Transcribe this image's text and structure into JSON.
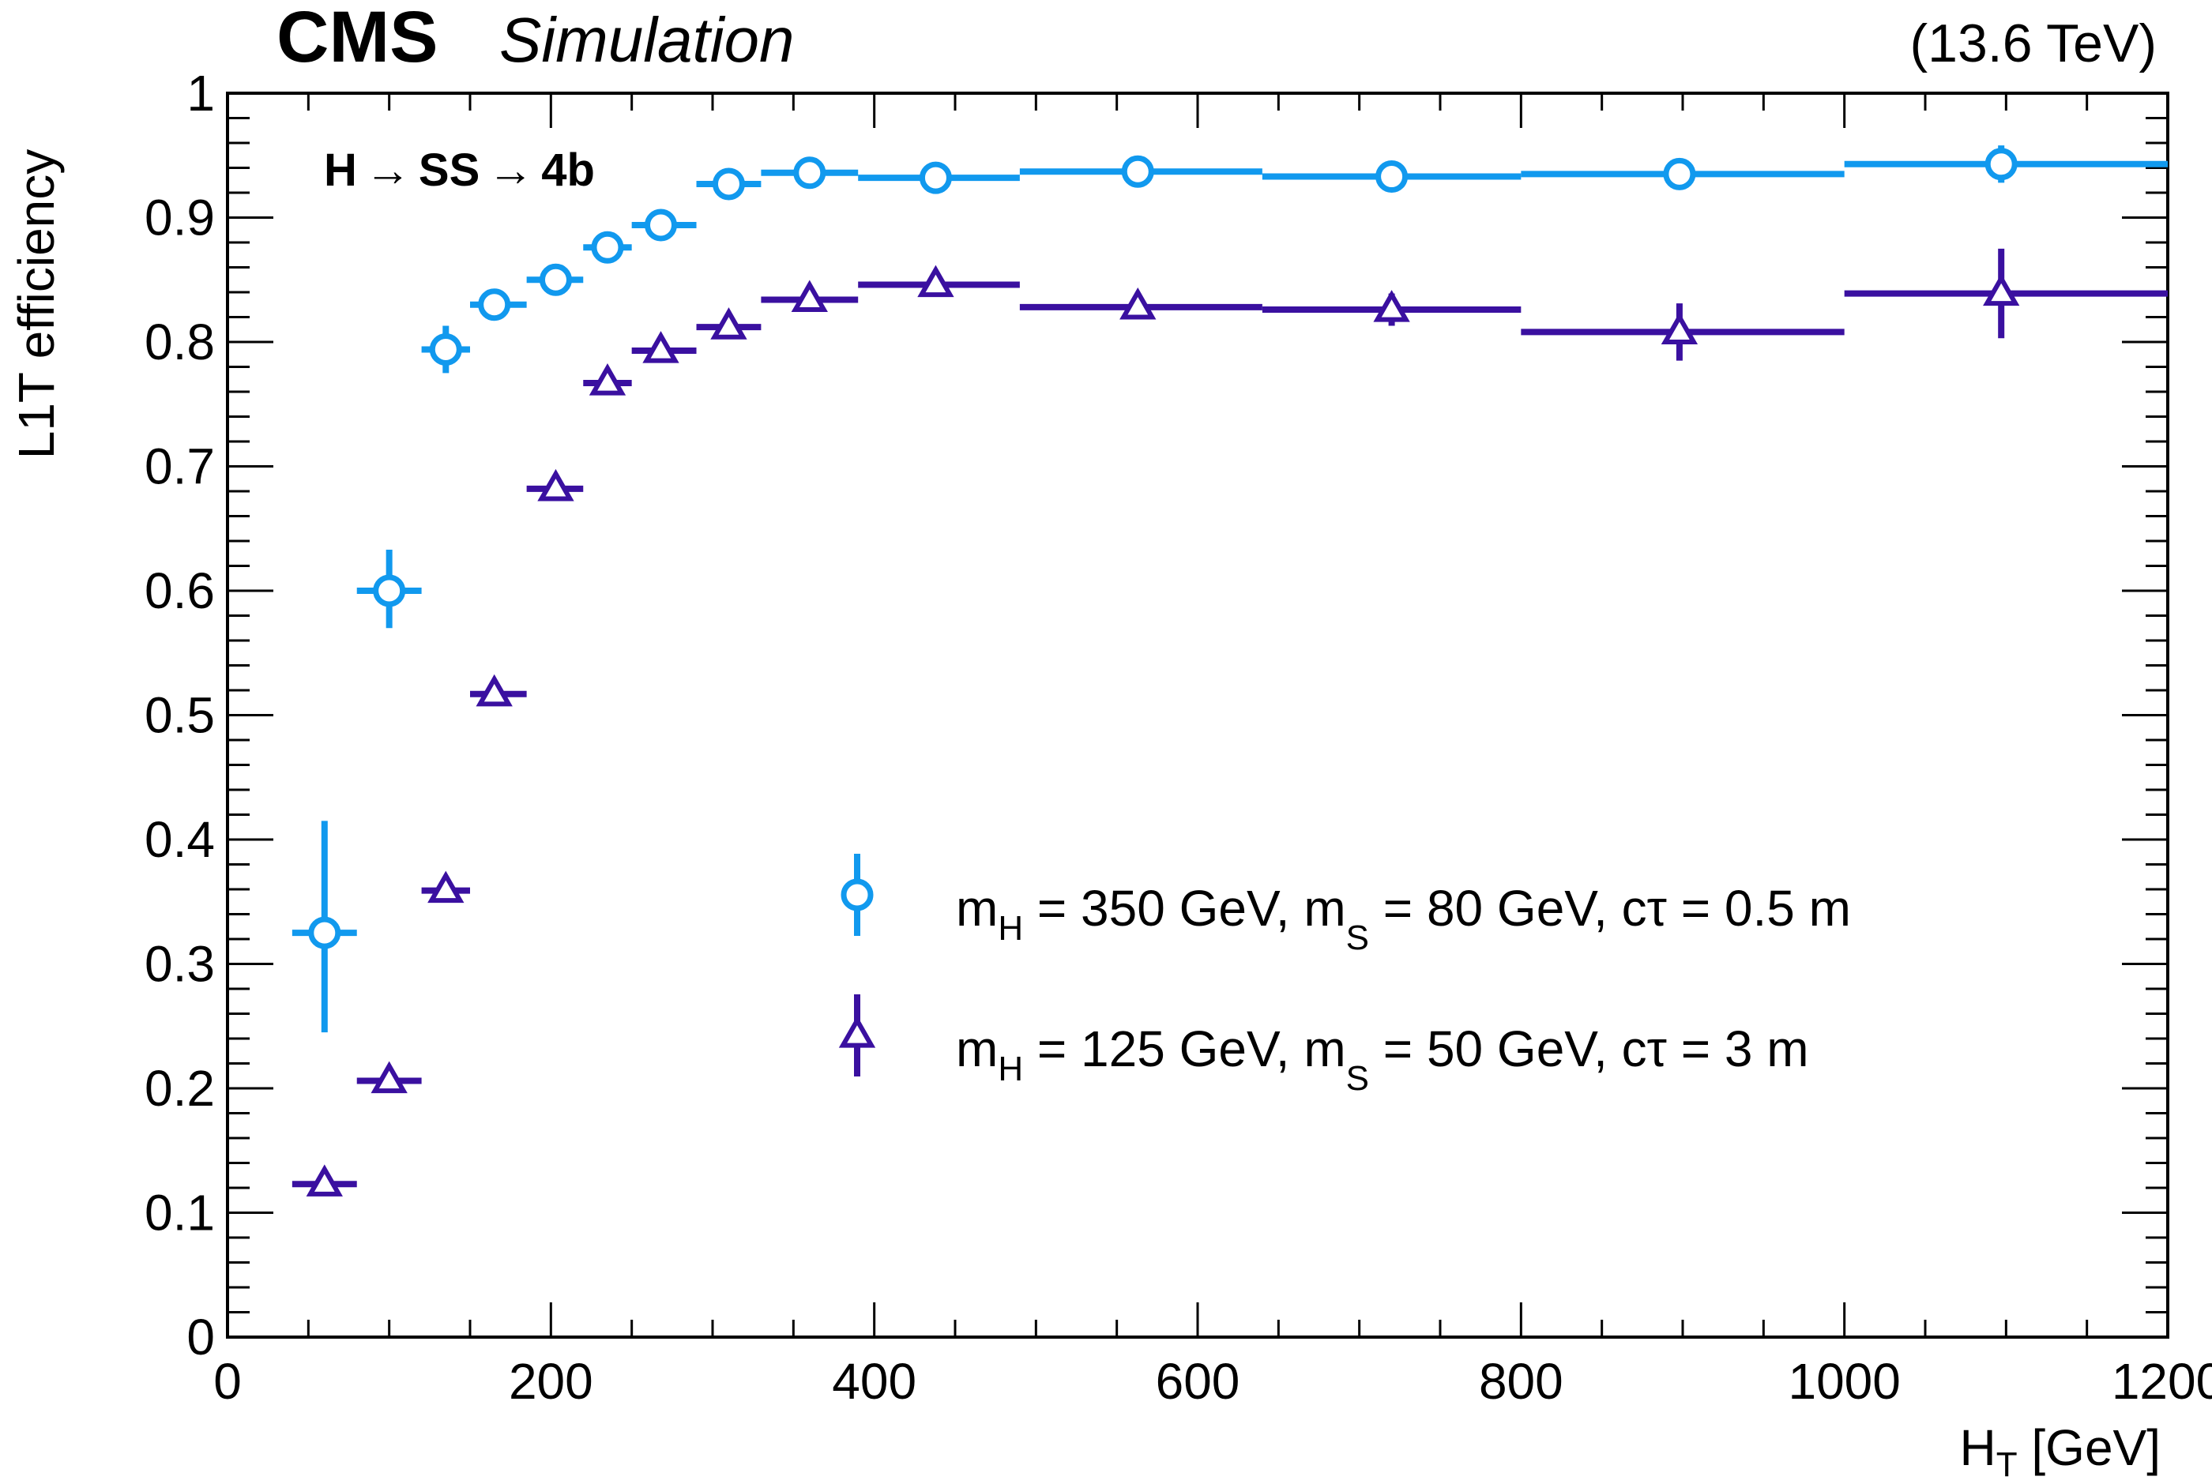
{
  "header": {
    "experiment": "CMS",
    "status": "Simulation",
    "energy": "(13.6 TeV)"
  },
  "process_label": {
    "a": "H",
    "arrow1": "→",
    "b": "SS",
    "arrow2": "→",
    "c": "4b"
  },
  "legend": [
    {
      "marker": "open-circle",
      "color": "#1199ee",
      "parts": {
        "m1": "m",
        "sub1": "H",
        "t1": " = 350 GeV, ",
        "m2": "m",
        "sub2": "S",
        "t2": " = 80 GeV, ",
        "ctau": "cτ",
        "t3": " = 0.5 m"
      }
    },
    {
      "marker": "open-triangle",
      "color": "#3a10a0",
      "parts": {
        "m1": "m",
        "sub1": "H",
        "t1": " = 125 GeV, ",
        "m2": "m",
        "sub2": "S",
        "t2": " = 50 GeV, ",
        "ctau": "cτ",
        "t3": " = 3 m"
      }
    }
  ],
  "chart_data": {
    "type": "scatter",
    "title": "",
    "xlabel": {
      "main": "H",
      "sub": "T",
      "unit": " [GeV]"
    },
    "ylabel": "L1T efficiency",
    "xlim": [
      0,
      1200
    ],
    "ylim": [
      0,
      1
    ],
    "x_ticks": [
      0,
      200,
      400,
      600,
      800,
      1000,
      1200
    ],
    "x_tick_labels": [
      "0",
      "200",
      "400",
      "600",
      "800",
      "1000",
      "1200"
    ],
    "y_ticks": [
      0,
      0.1,
      0.2,
      0.3,
      0.4,
      0.5,
      0.6,
      0.7,
      0.8,
      0.9,
      1
    ],
    "y_tick_labels": [
      "0",
      "0.1",
      "0.2",
      "0.3",
      "0.4",
      "0.5",
      "0.6",
      "0.7",
      "0.8",
      "0.9",
      "1"
    ],
    "grid": false,
    "legend_position": "center-right",
    "series": [
      {
        "name": "mH = 350 GeV, mS = 80 GeV, cτ = 0.5 m",
        "color": "#1199ee",
        "marker": "open-circle",
        "points": [
          {
            "x": 60,
            "xlo": 40,
            "xhi": 80,
            "y": 0.325,
            "ylo": 0.245,
            "yhi": 0.415
          },
          {
            "x": 100,
            "xlo": 80,
            "xhi": 120,
            "y": 0.6,
            "ylo": 0.57,
            "yhi": 0.633
          },
          {
            "x": 135,
            "xlo": 120,
            "xhi": 150,
            "y": 0.794,
            "ylo": 0.775,
            "yhi": 0.813
          },
          {
            "x": 165,
            "xlo": 150,
            "xhi": 185,
            "y": 0.83,
            "ylo": 0.82,
            "yhi": 0.84
          },
          {
            "x": 203,
            "xlo": 185,
            "xhi": 220,
            "y": 0.85,
            "ylo": 0.84,
            "yhi": 0.86
          },
          {
            "x": 235,
            "xlo": 220,
            "xhi": 250,
            "y": 0.876,
            "ylo": 0.867,
            "yhi": 0.885
          },
          {
            "x": 268,
            "xlo": 250,
            "xhi": 290,
            "y": 0.894,
            "ylo": 0.886,
            "yhi": 0.902
          },
          {
            "x": 310,
            "xlo": 290,
            "xhi": 330,
            "y": 0.927,
            "ylo": 0.921,
            "yhi": 0.933
          },
          {
            "x": 360,
            "xlo": 330,
            "xhi": 390,
            "y": 0.936,
            "ylo": 0.931,
            "yhi": 0.941
          },
          {
            "x": 438,
            "xlo": 390,
            "xhi": 490,
            "y": 0.932,
            "ylo": 0.927,
            "yhi": 0.937
          },
          {
            "x": 563,
            "xlo": 490,
            "xhi": 640,
            "y": 0.937,
            "ylo": 0.932,
            "yhi": 0.942
          },
          {
            "x": 720,
            "xlo": 640,
            "xhi": 800,
            "y": 0.933,
            "ylo": 0.927,
            "yhi": 0.939
          },
          {
            "x": 898,
            "xlo": 800,
            "xhi": 1000,
            "y": 0.935,
            "ylo": 0.928,
            "yhi": 0.942
          },
          {
            "x": 1097,
            "xlo": 1000,
            "xhi": 1200,
            "y": 0.943,
            "ylo": 0.928,
            "yhi": 0.958
          }
        ]
      },
      {
        "name": "mH = 125 GeV, mS = 50 GeV, cτ = 3 m",
        "color": "#3a10a0",
        "marker": "open-triangle",
        "points": [
          {
            "x": 60,
            "xlo": 40,
            "xhi": 80,
            "y": 0.123,
            "ylo": 0.119,
            "yhi": 0.127
          },
          {
            "x": 100,
            "xlo": 80,
            "xhi": 120,
            "y": 0.206,
            "ylo": 0.201,
            "yhi": 0.211
          },
          {
            "x": 135,
            "xlo": 120,
            "xhi": 150,
            "y": 0.359,
            "ylo": 0.352,
            "yhi": 0.366
          },
          {
            "x": 165,
            "xlo": 150,
            "xhi": 185,
            "y": 0.517,
            "ylo": 0.51,
            "yhi": 0.524
          },
          {
            "x": 203,
            "xlo": 185,
            "xhi": 220,
            "y": 0.682,
            "ylo": 0.675,
            "yhi": 0.689
          },
          {
            "x": 235,
            "xlo": 220,
            "xhi": 250,
            "y": 0.767,
            "ylo": 0.76,
            "yhi": 0.774
          },
          {
            "x": 268,
            "xlo": 250,
            "xhi": 290,
            "y": 0.793,
            "ylo": 0.786,
            "yhi": 0.8
          },
          {
            "x": 310,
            "xlo": 290,
            "xhi": 330,
            "y": 0.812,
            "ylo": 0.805,
            "yhi": 0.819
          },
          {
            "x": 360,
            "xlo": 330,
            "xhi": 390,
            "y": 0.834,
            "ylo": 0.827,
            "yhi": 0.841
          },
          {
            "x": 438,
            "xlo": 390,
            "xhi": 490,
            "y": 0.846,
            "ylo": 0.839,
            "yhi": 0.853
          },
          {
            "x": 563,
            "xlo": 490,
            "xhi": 640,
            "y": 0.828,
            "ylo": 0.821,
            "yhi": 0.835
          },
          {
            "x": 720,
            "xlo": 640,
            "xhi": 800,
            "y": 0.826,
            "ylo": 0.813,
            "yhi": 0.839
          },
          {
            "x": 898,
            "xlo": 800,
            "xhi": 1000,
            "y": 0.808,
            "ylo": 0.785,
            "yhi": 0.831
          },
          {
            "x": 1097,
            "xlo": 1000,
            "xhi": 1200,
            "y": 0.839,
            "ylo": 0.803,
            "yhi": 0.875
          }
        ]
      }
    ]
  }
}
